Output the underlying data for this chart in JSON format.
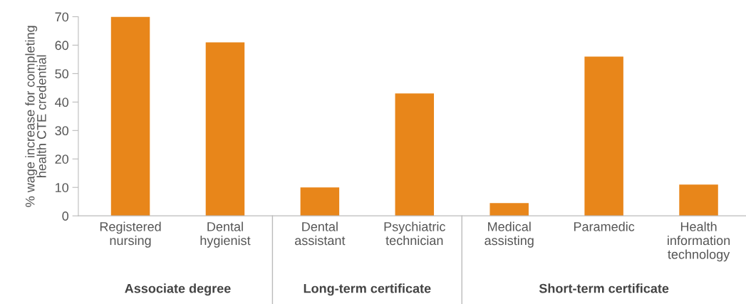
{
  "chart_data": {
    "type": "bar",
    "ylabel": "% wage increase for completing\nhealth CTE credential",
    "categories": [
      "Registered\nnursing",
      "Dental\nhygienist",
      "Dental\nassistant",
      "Psychiatric\ntechnician",
      "Medical\nassisting",
      "Paramedic",
      "Health\ninformation\ntechnology"
    ],
    "values": [
      70,
      61,
      10,
      43,
      4.5,
      56,
      11
    ],
    "color": "#e8861a",
    "ylim": [
      0,
      70
    ],
    "yticks": [
      0,
      10,
      20,
      30,
      40,
      50,
      60,
      70
    ],
    "grid": false,
    "legend": false,
    "annotations": [
      "Associate degree",
      "Long-term certificate",
      "Short-term certificate"
    ]
  }
}
